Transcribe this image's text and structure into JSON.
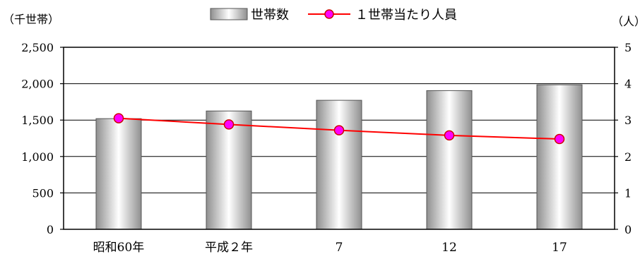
{
  "chart_data": {
    "type": "bar",
    "categories": [
      "昭和60年",
      "平成２年",
      "7",
      "12",
      "17"
    ],
    "series": [
      {
        "name": "世帯数",
        "type": "bar",
        "axis": "left",
        "values": [
          1520,
          1625,
          1772,
          1905,
          1985
        ]
      },
      {
        "name": "１世帯当たり人員",
        "type": "line",
        "axis": "right",
        "values": [
          3.05,
          2.88,
          2.72,
          2.58,
          2.48
        ]
      }
    ],
    "left_axis": {
      "unit_label": "（千世帯）",
      "ylim": [
        0,
        2500
      ],
      "ticks": [
        "0",
        "500",
        "1,000",
        "1,500",
        "2,000",
        "2,500"
      ]
    },
    "right_axis": {
      "unit_label": "（人）",
      "ylim": [
        0,
        5
      ],
      "ticks": [
        "0",
        "1",
        "2",
        "3",
        "4",
        "5"
      ]
    },
    "grid": true,
    "legend_position": "top-center",
    "colors": {
      "bar_edge": "#555555",
      "bar_light": "#ffffff",
      "bar_dark": "#8a8a8a",
      "line": "#ff0000",
      "marker_fill": "#ff00ff",
      "marker_edge": "#cc0000"
    }
  }
}
